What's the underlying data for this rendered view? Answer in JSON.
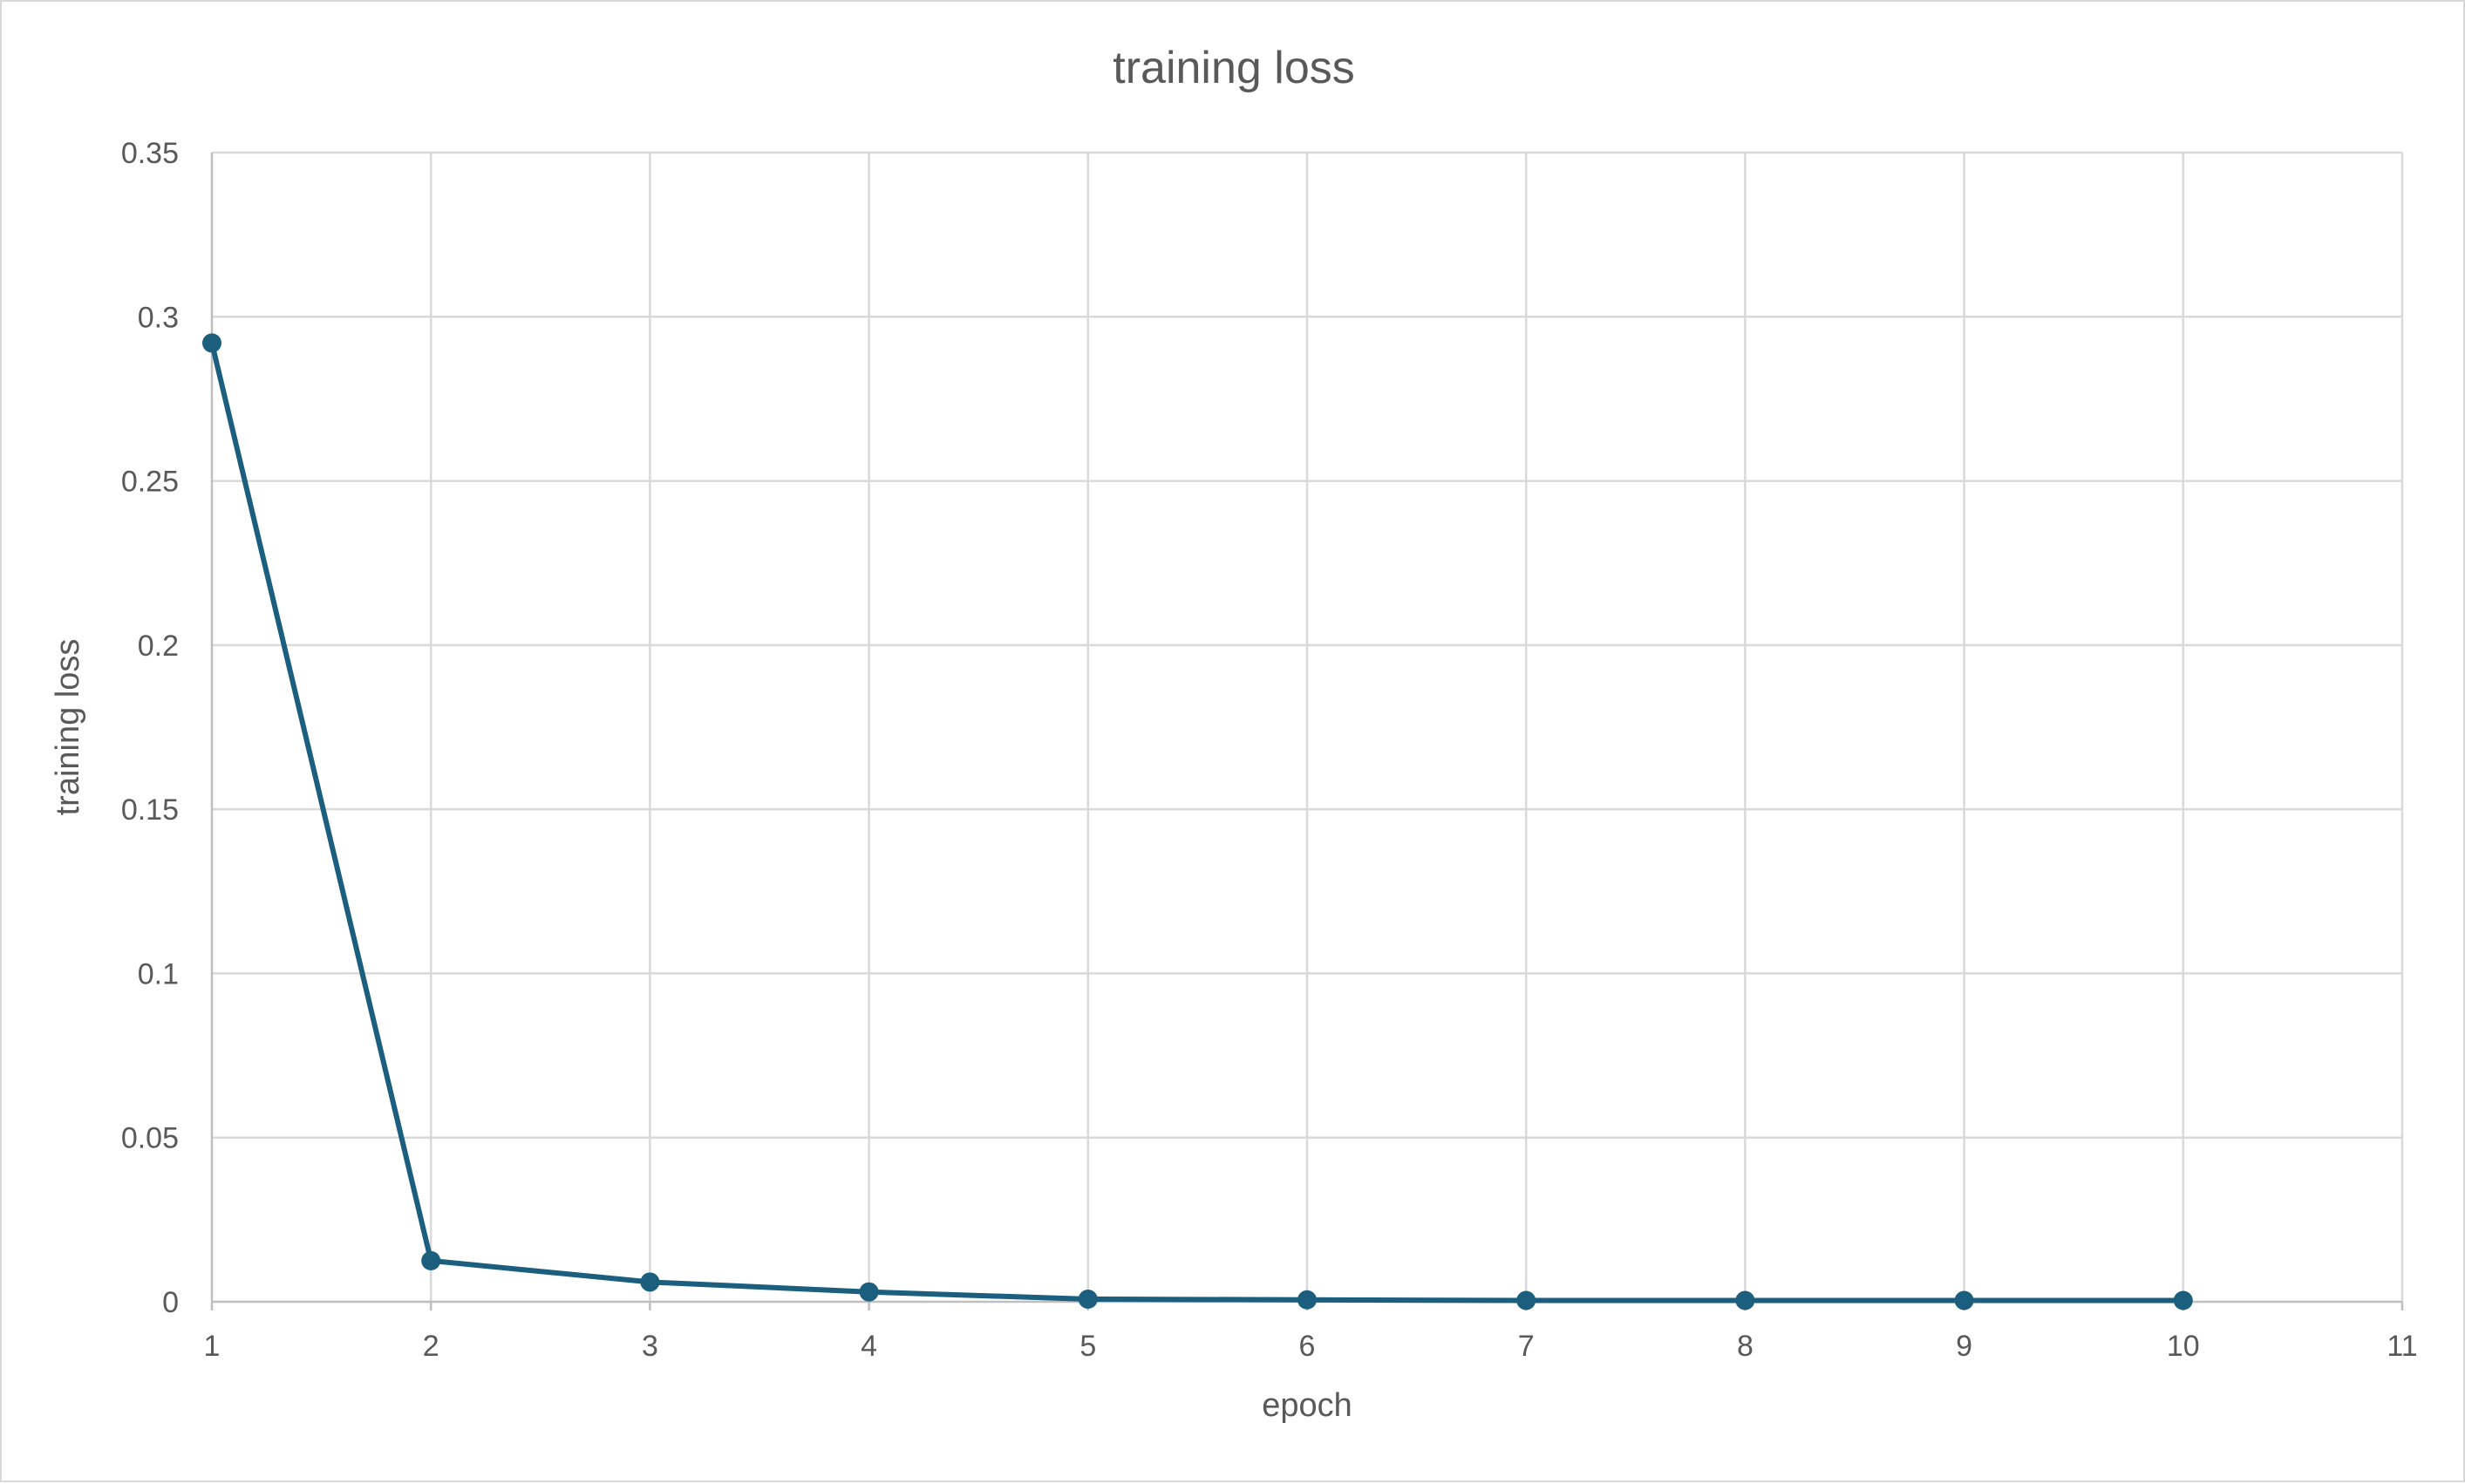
{
  "chart_data": {
    "type": "line",
    "title": "training loss",
    "xlabel": "epoch",
    "ylabel": "training loss",
    "xlim": [
      1,
      11
    ],
    "ylim": [
      0,
      0.35
    ],
    "x_ticks": [
      1,
      2,
      3,
      4,
      5,
      6,
      7,
      8,
      9,
      10,
      11
    ],
    "y_ticks": [
      0,
      0.05,
      0.1,
      0.15,
      0.2,
      0.25,
      0.3,
      0.35
    ],
    "y_tick_labels": [
      "0",
      "0.05",
      "0.1",
      "0.15",
      "0.2",
      "0.25",
      "0.3",
      "0.35"
    ],
    "grid": true,
    "legend": "none",
    "series": [
      {
        "color": "#1b5e7e",
        "x": [
          1,
          2,
          3,
          4,
          5,
          6,
          7,
          8,
          9,
          10
        ],
        "y": [
          0.292,
          0.0125,
          0.006,
          0.003,
          0.0008,
          0.0006,
          0.0004,
          0.0004,
          0.0004,
          0.0004
        ]
      }
    ]
  }
}
